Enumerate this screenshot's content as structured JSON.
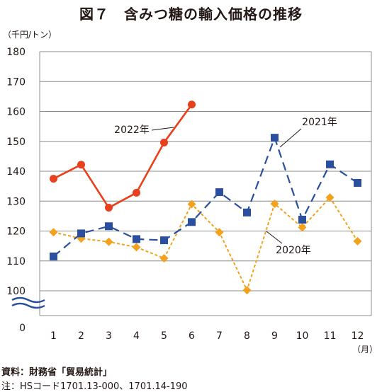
{
  "chart_data": {
    "type": "line",
    "title": "図７　含みつ糖の輸入価格の推移",
    "ylabel": "（千円/トン）",
    "xlabel": "（月）",
    "categories": [
      "1",
      "2",
      "3",
      "4",
      "5",
      "6",
      "7",
      "8",
      "9",
      "10",
      "11",
      "12"
    ],
    "y_ticks": [
      "0",
      "100",
      "110",
      "120",
      "130",
      "140",
      "150",
      "160",
      "170",
      "180"
    ],
    "ylim": [
      100,
      180
    ],
    "axis_break": true,
    "grid": true,
    "series": [
      {
        "name": "2022年",
        "color": "#e8401c",
        "style": "solid",
        "marker": "circle",
        "values": [
          137.5,
          142.2,
          127.8,
          132.8,
          149.6,
          162.3,
          null,
          null,
          null,
          null,
          null,
          null
        ]
      },
      {
        "name": "2021年",
        "color": "#2a4f9e",
        "style": "dashed",
        "marker": "square",
        "values": [
          111.5,
          119.2,
          121.6,
          117.3,
          116.9,
          123.0,
          133.0,
          126.2,
          151.2,
          123.8,
          142.3,
          136.1
        ]
      },
      {
        "name": "2020年",
        "color": "#f2a21c",
        "style": "dotted",
        "marker": "diamond",
        "values": [
          119.6,
          117.5,
          116.4,
          114.6,
          110.9,
          129.0,
          119.6,
          100.2,
          129.1,
          121.2,
          131.2,
          116.6
        ]
      }
    ],
    "notes": {
      "source": "資料：財務省「貿易統計」",
      "footnote": "注：HSコード1701.13-000、1701.14-190"
    }
  }
}
